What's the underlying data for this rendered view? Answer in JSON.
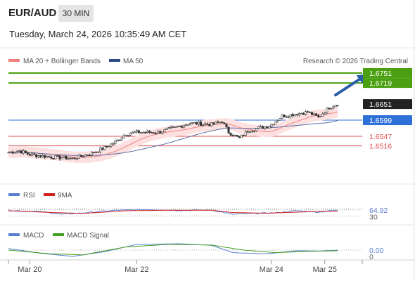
{
  "header": {
    "pair": "EUR/AUD",
    "timeframe": "30 MIN",
    "datetime": "Tuesday, March 24, 2026 10:35:49 AM CET"
  },
  "legend": {
    "ma20_label": "MA 20 + Bollinger Bands",
    "ma50_label": "MA 50",
    "credit": "Research © 2026 Trading Central",
    "rsi_label": "RSI",
    "rsi_ma_label": "9MA",
    "macd_label": "MACD",
    "macd_signal_label": "MACD Signal"
  },
  "colors": {
    "candle": "#333333",
    "bollinger_fill": "#fde0e0",
    "ma20": "#f08080",
    "ma50": "#5b6fa8",
    "resistance": "#4aa010",
    "pivot": "#2f6fd8",
    "support": "#e05050",
    "arrow": "#2d5fa8",
    "rsi": "#5b7fd0",
    "rsi_ma": "#d02020",
    "macd": "#5b7fd0",
    "macd_signal": "#40a020"
  },
  "chart_data": [
    {
      "type": "candlestick",
      "ylim": [
        1.642,
        1.676
      ],
      "x_tick_labels": [
        "Mar 20",
        "Mar 22",
        "Mar 24",
        "Mar 25"
      ],
      "x_tick_positions": [
        10,
        60,
        123,
        148
      ],
      "n_bars": 155,
      "close_path": [
        [
          0,
          1.6495
        ],
        [
          5,
          1.65
        ],
        [
          10,
          1.6488
        ],
        [
          20,
          1.648
        ],
        [
          25,
          1.6478
        ],
        [
          30,
          1.6475
        ],
        [
          38,
          1.649
        ],
        [
          45,
          1.651
        ],
        [
          50,
          1.6528
        ],
        [
          55,
          1.6555
        ],
        [
          60,
          1.656
        ],
        [
          70,
          1.656
        ],
        [
          78,
          1.6575
        ],
        [
          85,
          1.659
        ],
        [
          95,
          1.6585
        ],
        [
          100,
          1.6595
        ],
        [
          103,
          1.656
        ],
        [
          108,
          1.654
        ],
        [
          112,
          1.6565
        ],
        [
          118,
          1.6575
        ],
        [
          122,
          1.658
        ],
        [
          128,
          1.6612
        ],
        [
          135,
          1.662
        ],
        [
          140,
          1.6625
        ],
        [
          145,
          1.6608
        ],
        [
          150,
          1.664
        ],
        [
          155,
          1.6655
        ]
      ],
      "levels": [
        {
          "value": 1.6751,
          "label": "1.6751",
          "kind": "resistance"
        },
        {
          "value": 1.6719,
          "label": "1.6719",
          "kind": "resistance"
        },
        {
          "value": 1.6651,
          "label": "1.6651",
          "kind": "last"
        },
        {
          "value": 1.6599,
          "label": "1.6599",
          "kind": "pivot"
        },
        {
          "value": 1.6547,
          "label": "1.6547",
          "kind": "support"
        },
        {
          "value": 1.6516,
          "label": "1.6516",
          "kind": "support"
        }
      ],
      "arrow": {
        "from": {
          "bar": 153,
          "value": 1.668
        },
        "to": {
          "bar": 168,
          "value": 1.6748
        }
      },
      "series": [
        {
          "name": "MA 20 + Bollinger Bands",
          "band_width": 0.0018
        },
        {
          "name": "MA 50"
        }
      ]
    },
    {
      "type": "line",
      "title": "RSI",
      "ylim": [
        0,
        100
      ],
      "reference_lines": [
        30,
        70
      ],
      "last_value": 64.92,
      "tick_labels": [
        "30",
        "64.92"
      ],
      "series": [
        {
          "name": "RSI",
          "path": [
            [
              0,
              62
            ],
            [
              15,
              55
            ],
            [
              25,
              40
            ],
            [
              35,
              48
            ],
            [
              50,
              62
            ],
            [
              65,
              67
            ],
            [
              80,
              62
            ],
            [
              95,
              64
            ],
            [
              105,
              40
            ],
            [
              115,
              45
            ],
            [
              125,
              48
            ],
            [
              135,
              60
            ],
            [
              145,
              52
            ],
            [
              155,
              64.92
            ]
          ]
        },
        {
          "name": "9MA",
          "path": [
            [
              0,
              60
            ],
            [
              20,
              50
            ],
            [
              35,
              45
            ],
            [
              55,
              60
            ],
            [
              75,
              63
            ],
            [
              95,
              63
            ],
            [
              105,
              50
            ],
            [
              120,
              46
            ],
            [
              135,
              52
            ],
            [
              145,
              56
            ],
            [
              155,
              58
            ]
          ]
        }
      ]
    },
    {
      "type": "line",
      "title": "MACD",
      "last_value": 0.0,
      "tick_labels": [
        "0.00",
        "0"
      ],
      "series": [
        {
          "name": "MACD",
          "path": [
            [
              0,
              0.0005
            ],
            [
              15,
              -0.001
            ],
            [
              30,
              -0.002
            ],
            [
              45,
              -0.0005
            ],
            [
              60,
              0.0018
            ],
            [
              80,
              0.002
            ],
            [
              95,
              0.0015
            ],
            [
              105,
              -0.0008
            ],
            [
              120,
              -0.0012
            ],
            [
              135,
              -0.0002
            ],
            [
              145,
              -0.0003
            ],
            [
              155,
              0.0
            ]
          ]
        },
        {
          "name": "MACD Signal",
          "path": [
            [
              0,
              0.0
            ],
            [
              20,
              -0.0012
            ],
            [
              35,
              -0.0015
            ],
            [
              55,
              0.001
            ],
            [
              75,
              0.0018
            ],
            [
              95,
              0.0016
            ],
            [
              110,
              0.0
            ],
            [
              125,
              -0.0008
            ],
            [
              140,
              -0.0004
            ],
            [
              155,
              -0.0002
            ]
          ]
        }
      ]
    }
  ]
}
